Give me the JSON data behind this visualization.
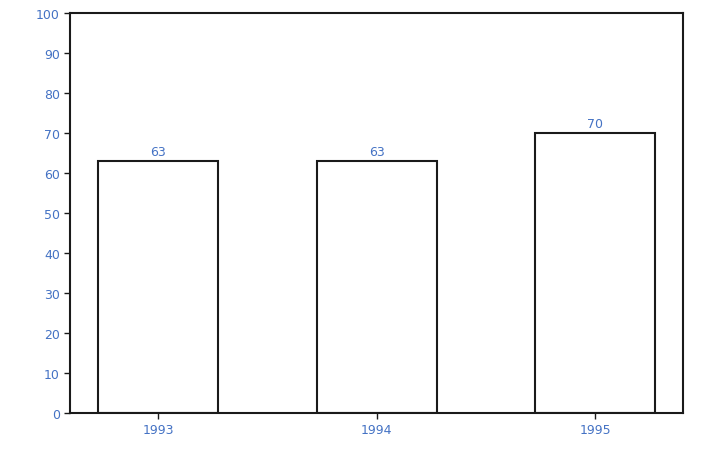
{
  "categories": [
    "1993",
    "1994",
    "1995"
  ],
  "values": [
    63,
    63,
    70
  ],
  "bar_color": "#ffffff",
  "bar_edgecolor": "#1a1a1a",
  "bar_linewidth": 1.5,
  "label_color": "#4472c4",
  "label_fontsize": 9,
  "tick_label_color": "#4472c4",
  "tick_fontsize": 9,
  "ylim": [
    0,
    100
  ],
  "yticks": [
    0,
    10,
    20,
    30,
    40,
    50,
    60,
    70,
    80,
    90,
    100
  ],
  "bar_width": 0.55,
  "background_color": "#ffffff",
  "spine_color": "#1a1a1a",
  "spine_linewidth": 1.5
}
